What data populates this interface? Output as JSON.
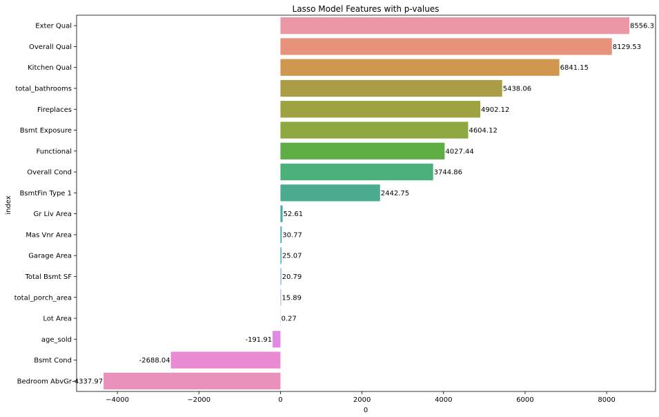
{
  "chart_data": {
    "type": "bar",
    "orientation": "horizontal",
    "title": "Lasso Model Features with p-values",
    "xlabel": "0",
    "ylabel": "index",
    "xlim": [
      -5000,
      9200
    ],
    "xticks": [
      -4000,
      -2000,
      0,
      2000,
      4000,
      6000,
      8000
    ],
    "xtick_labels": [
      "−4000",
      "−2000",
      "0",
      "2000",
      "4000",
      "6000",
      "8000"
    ],
    "grid": false,
    "categories": [
      "Exter Qual",
      "Overall Qual",
      "Kitchen Qual",
      "total_bathrooms",
      "Fireplaces",
      "Bsmt Exposure",
      "Functional",
      "Overall Cond",
      "BsmtFin Type 1",
      "Gr Liv Area",
      "Mas Vnr Area",
      "Garage Area",
      "Total Bsmt SF",
      "total_porch_area",
      "Lot Area",
      "age_sold",
      "Bsmt Cond",
      "Bedroom AbvGr"
    ],
    "values": [
      8556.3,
      8129.53,
      6841.15,
      5438.06,
      4902.12,
      4604.12,
      4027.44,
      3744.86,
      2442.75,
      52.61,
      30.77,
      25.07,
      20.79,
      15.89,
      0.27,
      -191.91,
      -2688.04,
      -4337.97
    ],
    "labels": [
      "8556.3",
      "8129.53",
      "6841.15",
      "5438.06",
      "4902.12",
      "4604.12",
      "4027.44",
      "3744.86",
      "2442.75",
      "52.61",
      "30.77",
      "25.07",
      "20.79",
      "15.89",
      "0.27",
      "-191.91",
      "-2688.04",
      "-4337.97"
    ],
    "colors": [
      "#ea96a3",
      "#e8927c",
      "#d0984e",
      "#ab9d46",
      "#9ea240",
      "#8da83e",
      "#5eae45",
      "#4ab07c",
      "#4aab8e",
      "#47aaa4",
      "#44a8b6",
      "#47a5c8",
      "#87a3d6",
      "#b49cde",
      "#d293d8",
      "#e189e3",
      "#e98ad3",
      "#e991ba"
    ]
  }
}
